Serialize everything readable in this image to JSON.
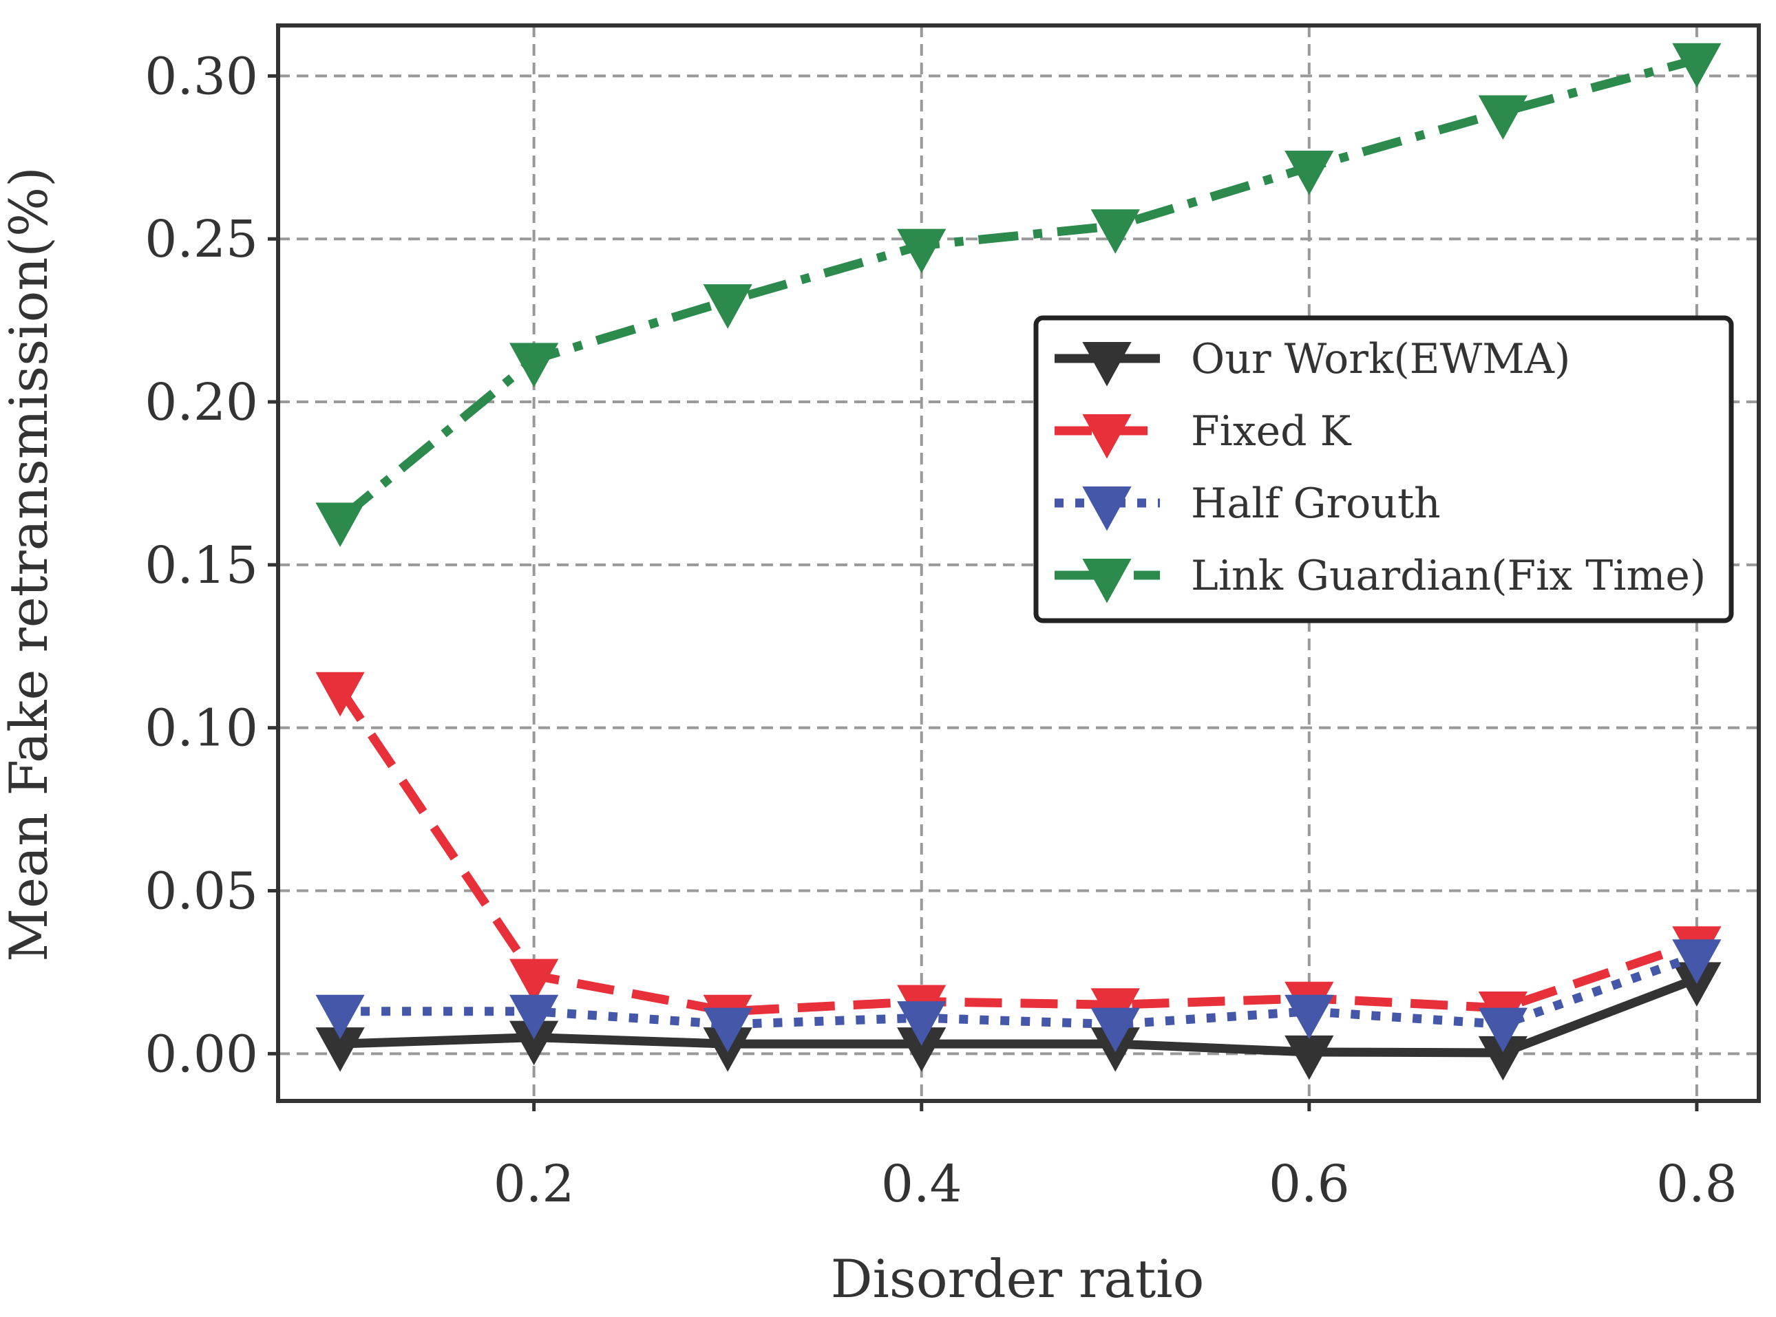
{
  "chart_data": {
    "type": "line",
    "title": "",
    "xlabel": "Disorder ratio",
    "ylabel": "Mean Fake retransmission(%)",
    "xlim": [
      0.068,
      0.832
    ],
    "ylim": [
      -0.0145,
      0.3155
    ],
    "xticks": [
      0.2,
      0.4,
      0.6,
      0.8
    ],
    "xtick_labels": [
      "0.2",
      "0.4",
      "0.6",
      "0.8"
    ],
    "yticks": [
      0.0,
      0.05,
      0.1,
      0.15,
      0.2,
      0.25,
      0.3
    ],
    "ytick_labels": [
      "0.00",
      "0.05",
      "0.10",
      "0.15",
      "0.20",
      "0.25",
      "0.30"
    ],
    "grid": true,
    "legend_position": "center-right",
    "x": [
      0.1,
      0.2,
      0.3,
      0.4,
      0.5,
      0.6,
      0.7,
      0.8
    ],
    "series": [
      {
        "name": "Our Work(EWMA)",
        "color": "#333333",
        "linestyle": "solid",
        "marker": "triangle-down",
        "values": [
          0.003,
          0.005,
          0.003,
          0.003,
          0.003,
          0.0005,
          0.0003,
          0.023
        ]
      },
      {
        "name": "Fixed K",
        "color": "#e8303a",
        "linestyle": "dashed",
        "marker": "triangle-down",
        "values": [
          0.112,
          0.024,
          0.013,
          0.016,
          0.015,
          0.017,
          0.014,
          0.034
        ]
      },
      {
        "name": "Half Grouth",
        "color": "#4457a8",
        "linestyle": "dotted",
        "marker": "triangle-down",
        "values": [
          0.013,
          0.013,
          0.009,
          0.011,
          0.009,
          0.013,
          0.009,
          0.03
        ]
      },
      {
        "name": "Link Guardian(Fix Time)",
        "color": "#2b8a4c",
        "linestyle": "dashdot",
        "marker": "triangle-down",
        "values": [
          0.164,
          0.213,
          0.231,
          0.248,
          0.254,
          0.272,
          0.289,
          0.305
        ]
      }
    ]
  }
}
